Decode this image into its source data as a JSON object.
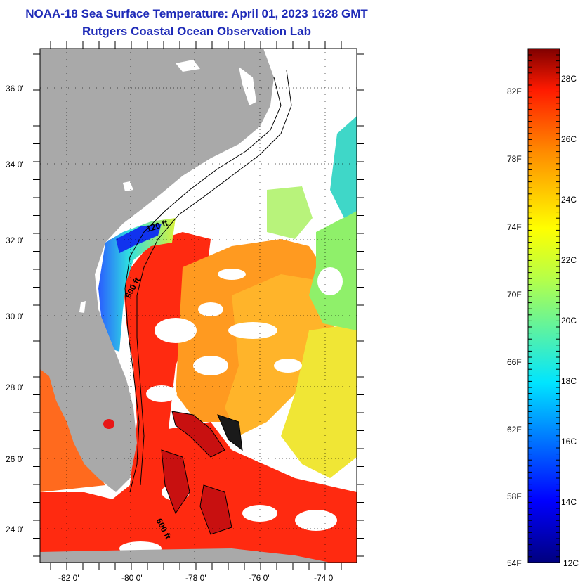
{
  "title": {
    "line1": "NOAA-18 Sea Surface Temperature:  April 01, 2023 1628 GMT",
    "line2": "Rutgers Coastal Ocean Observation Lab"
  },
  "map": {
    "lat_ticks": [
      "36 0'",
      "34 0'",
      "32 0'",
      "30 0'",
      "28 0'",
      "26 0'",
      "24 0'"
    ],
    "lon_ticks": [
      "-82 0'",
      "-80 0'",
      "-78 0'",
      "-76 0'",
      "-74 0'"
    ],
    "isobath_labels": [
      "120 ft",
      "600 ft",
      "600 ft"
    ],
    "colors": {
      "land": "#a9a9a9",
      "cloud": "#ffffff"
    }
  },
  "colorbar": {
    "fahrenheit": [
      "82F",
      "78F",
      "74F",
      "70F",
      "66F",
      "62F",
      "58F",
      "54F"
    ],
    "celsius": [
      "28C",
      "26C",
      "24C",
      "22C",
      "20C",
      "18C",
      "16C",
      "14C",
      "12C"
    ],
    "range_c": [
      12,
      29
    ]
  }
}
